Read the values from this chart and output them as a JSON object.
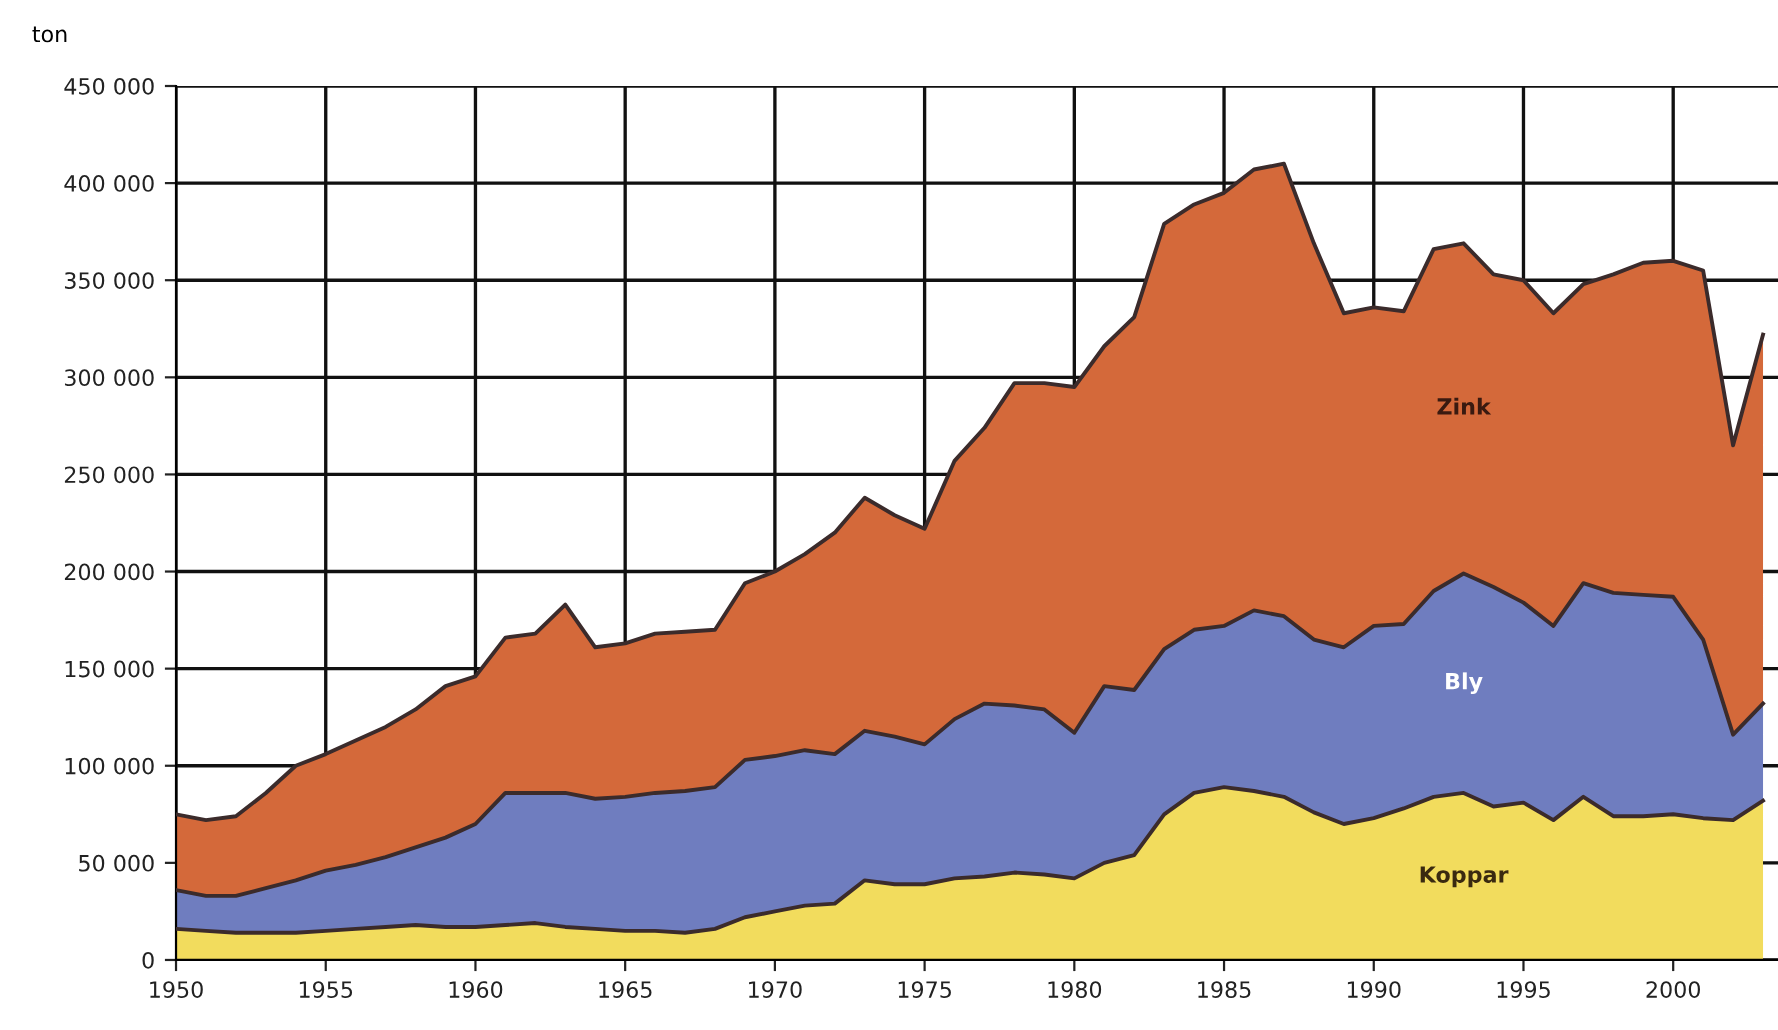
{
  "chart_data": {
    "type": "area",
    "stacked": true,
    "ylabel": "ton",
    "x": [
      1950,
      1951,
      1952,
      1953,
      1954,
      1955,
      1956,
      1957,
      1958,
      1959,
      1960,
      1961,
      1962,
      1963,
      1964,
      1965,
      1966,
      1967,
      1968,
      1969,
      1970,
      1971,
      1972,
      1973,
      1974,
      1975,
      1976,
      1977,
      1978,
      1979,
      1980,
      1981,
      1982,
      1983,
      1984,
      1985,
      1986,
      1987,
      1988,
      1989,
      1990,
      1991,
      1992,
      1993,
      1994,
      1995,
      1996,
      1997,
      1998,
      1999,
      2000,
      2001,
      2002,
      2003
    ],
    "series": [
      {
        "name": "Koppar",
        "color": "#f2dc5d",
        "values": [
          16000,
          15000,
          14000,
          14000,
          14000,
          15000,
          16000,
          17000,
          18000,
          17000,
          17000,
          18000,
          19000,
          17000,
          16000,
          15000,
          15000,
          14000,
          16000,
          22000,
          25000,
          28000,
          29000,
          41000,
          39000,
          39000,
          42000,
          43000,
          45000,
          44000,
          42000,
          50000,
          54000,
          75000,
          86000,
          89000,
          87000,
          84000,
          76000,
          70000,
          73000,
          78000,
          84000,
          86000,
          79000,
          81000,
          72000,
          84000,
          74000,
          74000,
          75000,
          73000,
          72000,
          82000
        ]
      },
      {
        "name": "Bly",
        "color": "#6f7dbf",
        "values": [
          20000,
          18000,
          19000,
          23000,
          27000,
          31000,
          33000,
          36000,
          40000,
          46000,
          53000,
          68000,
          67000,
          69000,
          67000,
          69000,
          71000,
          73000,
          73000,
          81000,
          80000,
          80000,
          77000,
          77000,
          76000,
          72000,
          82000,
          89000,
          86000,
          85000,
          75000,
          91000,
          85000,
          85000,
          84000,
          83000,
          93000,
          93000,
          89000,
          91000,
          99000,
          95000,
          106000,
          113000,
          113000,
          103000,
          100000,
          110000,
          115000,
          114000,
          112000,
          92000,
          44000,
          50000
        ]
      },
      {
        "name": "Zink",
        "color": "#d4693a",
        "values": [
          39000,
          39000,
          41000,
          49000,
          59000,
          60000,
          64000,
          67000,
          71000,
          78000,
          76000,
          80000,
          82000,
          97000,
          78000,
          79000,
          82000,
          82000,
          81000,
          91000,
          95000,
          101000,
          114000,
          120000,
          114000,
          111000,
          133000,
          142000,
          166000,
          168000,
          178000,
          175000,
          192000,
          219000,
          219000,
          223000,
          227000,
          233000,
          204000,
          172000,
          164000,
          161000,
          176000,
          170000,
          161000,
          166000,
          161000,
          154000,
          164000,
          171000,
          173000,
          190000,
          149000,
          190000
        ]
      }
    ],
    "xlim": [
      1950,
      2003.5
    ],
    "xticks": [
      1950,
      1955,
      1960,
      1965,
      1970,
      1975,
      1980,
      1985,
      1990,
      1995,
      2000
    ],
    "ylim": [
      0,
      450000
    ],
    "yticks": [
      0,
      {
        "value": 50000,
        "label": "50 000"
      },
      {
        "value": 100000,
        "label": "100 000"
      },
      {
        "value": 150000,
        "label": "150 000"
      },
      {
        "value": 200000,
        "label": "200 000"
      },
      {
        "value": 250000,
        "label": "250 000"
      },
      {
        "value": 300000,
        "label": "300 000"
      },
      {
        "value": 350000,
        "label": "350 000"
      },
      {
        "value": 400000,
        "label": "400 000"
      },
      {
        "value": 450000,
        "label": "450 000"
      }
    ],
    "grid": true,
    "legend": false
  }
}
